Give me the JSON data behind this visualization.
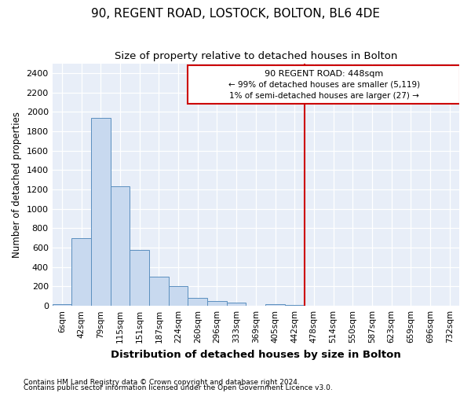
{
  "title1": "90, REGENT ROAD, LOSTOCK, BOLTON, BL6 4DE",
  "title2": "Size of property relative to detached houses in Bolton",
  "xlabel": "Distribution of detached houses by size in Bolton",
  "ylabel": "Number of detached properties",
  "bar_color": "#C8D9EF",
  "bar_edge_color": "#5B8FBF",
  "marker_color": "#CC0000",
  "background_color": "#E8EEF8",
  "categories": [
    "6sqm",
    "42sqm",
    "79sqm",
    "115sqm",
    "151sqm",
    "187sqm",
    "224sqm",
    "260sqm",
    "296sqm",
    "333sqm",
    "369sqm",
    "405sqm",
    "442sqm",
    "478sqm",
    "514sqm",
    "550sqm",
    "587sqm",
    "623sqm",
    "659sqm",
    "696sqm",
    "732sqm"
  ],
  "values": [
    20,
    700,
    1940,
    1230,
    575,
    300,
    200,
    80,
    50,
    30,
    0,
    20,
    10,
    0,
    0,
    0,
    0,
    0,
    0,
    0,
    0
  ],
  "ylim": [
    0,
    2500
  ],
  "yticks": [
    0,
    200,
    400,
    600,
    800,
    1000,
    1200,
    1400,
    1600,
    1800,
    2000,
    2200,
    2400
  ],
  "marker_index": 12,
  "annotation_title": "90 REGENT ROAD: 448sqm",
  "annotation_line1": "← 99% of detached houses are smaller (5,119)",
  "annotation_line2": "1% of semi-detached houses are larger (27) →",
  "footer1": "Contains HM Land Registry data © Crown copyright and database right 2024.",
  "footer2": "Contains public sector information licensed under the Open Government Licence v3.0.",
  "title1_fontsize": 11,
  "title2_fontsize": 9.5
}
